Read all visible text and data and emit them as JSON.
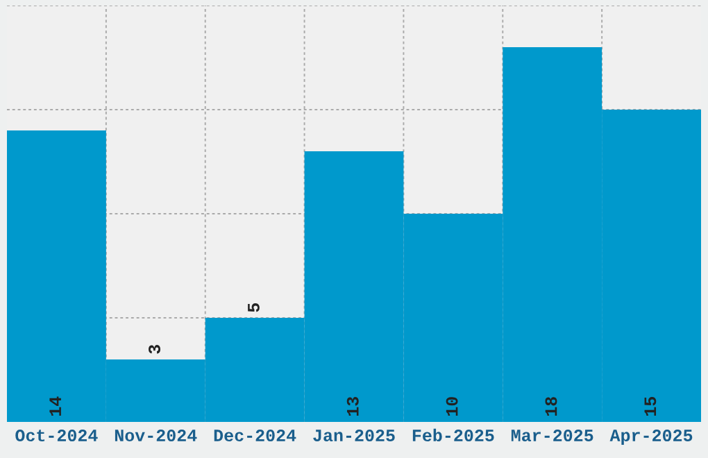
{
  "chart_data": {
    "type": "bar",
    "categories": [
      "Oct-2024",
      "Nov-2024",
      "Dec-2024",
      "Jan-2025",
      "Feb-2025",
      "Mar-2025",
      "Apr-2025"
    ],
    "values": [
      14,
      3,
      5,
      13,
      10,
      18,
      15
    ],
    "color": "#0099cc",
    "ylim": [
      0,
      20
    ],
    "tick_labels": "x",
    "grid": true,
    "data_labels": true
  }
}
